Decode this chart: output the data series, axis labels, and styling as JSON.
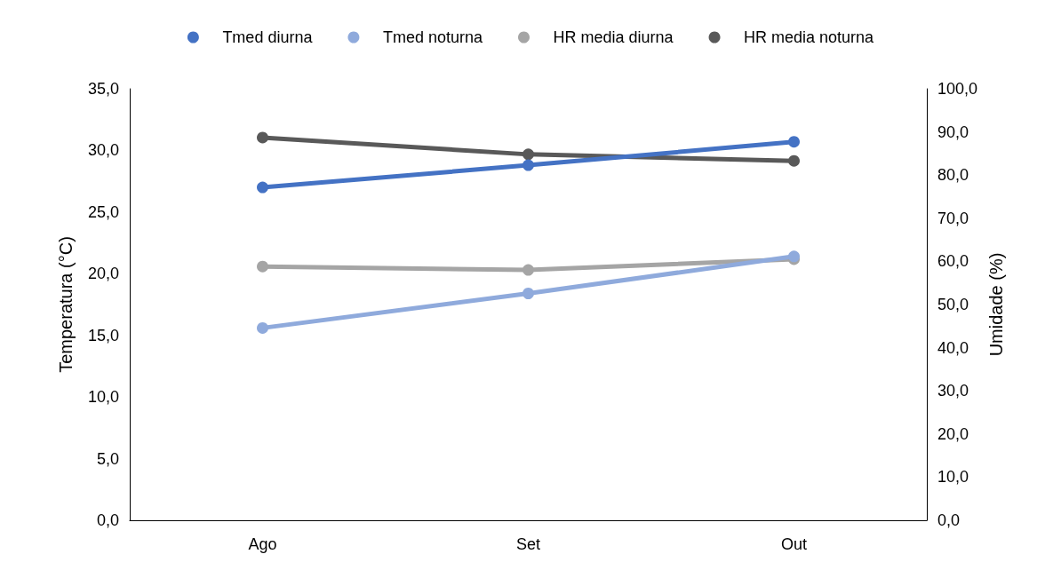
{
  "chart_data": {
    "type": "line",
    "ylabel": "Temperatura (°C)",
    "y2label": "Umidade (%)",
    "categories": [
      "Ago",
      "Set",
      "Out"
    ],
    "series": [
      {
        "name": "Tmed diurna",
        "color": "#4472c4",
        "values": [
          27.0,
          28.8,
          30.7
        ]
      },
      {
        "name": "Tmed noturna",
        "color": "#8faadc",
        "values": [
          15.6,
          18.4,
          21.4
        ]
      },
      {
        "name": "HR media diurna",
        "color": "#a5a5a5",
        "values": [
          58.8,
          58.0,
          60.5
        ],
        "axis": "y2"
      },
      {
        "name": "HR media noturna",
        "color": "#595959",
        "values": [
          88.7,
          84.8,
          83.3
        ],
        "axis": "y2"
      }
    ],
    "ylim": [
      0,
      35
    ],
    "yticks": [
      {
        "value": 0,
        "label": "0,0"
      },
      {
        "value": 5,
        "label": "5,0"
      },
      {
        "value": 10,
        "label": "10,0"
      },
      {
        "value": 15,
        "label": "15,0"
      },
      {
        "value": 20,
        "label": "20,0"
      },
      {
        "value": 25,
        "label": "25,0"
      },
      {
        "value": 30,
        "label": "30,0"
      },
      {
        "value": 35,
        "label": "35,0"
      }
    ],
    "y2lim": [
      0,
      100
    ],
    "y2ticks": [
      {
        "value": 0,
        "label": "0,0"
      },
      {
        "value": 10,
        "label": "10,0"
      },
      {
        "value": 20,
        "label": "20,0"
      },
      {
        "value": 30,
        "label": "30,0"
      },
      {
        "value": 40,
        "label": "40,0"
      },
      {
        "value": 50,
        "label": "50,0"
      },
      {
        "value": 60,
        "label": "60,0"
      },
      {
        "value": 70,
        "label": "70,0"
      },
      {
        "value": 80,
        "label": "80,0"
      },
      {
        "value": 90,
        "label": "90,0"
      },
      {
        "value": 100,
        "label": "100,0"
      }
    ],
    "legend": "top",
    "grid": false,
    "marker": "circle",
    "line_style": "solid"
  }
}
